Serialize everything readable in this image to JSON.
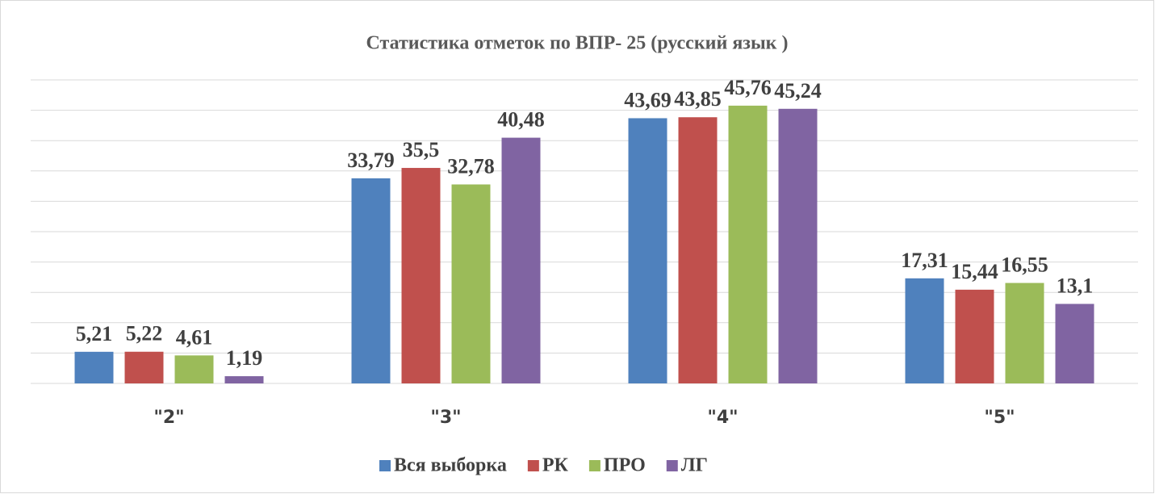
{
  "chart_data": {
    "type": "bar",
    "title": "Статистика отметок по ВПР- 25  (русский язык )",
    "categories": [
      "\"2\"",
      "\"3\"",
      "\"4\"",
      "\"5\""
    ],
    "series": [
      {
        "name": "Вся выборка",
        "color": "#4f81bd",
        "values": [
          5.21,
          33.79,
          43.69,
          17.31
        ],
        "value_labels": [
          "5,21",
          "33,79",
          "43,69",
          "17,31"
        ]
      },
      {
        "name": "РК",
        "color": "#c0504d",
        "values": [
          5.22,
          35.5,
          43.85,
          15.44
        ],
        "value_labels": [
          "5,22",
          "35,5",
          "43,85",
          "15,44"
        ]
      },
      {
        "name": "ПРО",
        "color": "#9bbb59",
        "values": [
          4.61,
          32.78,
          45.76,
          16.55
        ],
        "value_labels": [
          "4,61",
          "32,78",
          "45,76",
          "16,55"
        ]
      },
      {
        "name": "ЛГ",
        "color": "#8064a2",
        "values": [
          1.19,
          40.48,
          45.24,
          13.1
        ],
        "value_labels": [
          "1,19",
          "40,48",
          "45,24",
          "13,1"
        ]
      }
    ],
    "ylim": [
      0,
      50
    ],
    "yticks": [
      0,
      5,
      10,
      15,
      20,
      25,
      30,
      35,
      40,
      45,
      50
    ],
    "grid": true
  }
}
